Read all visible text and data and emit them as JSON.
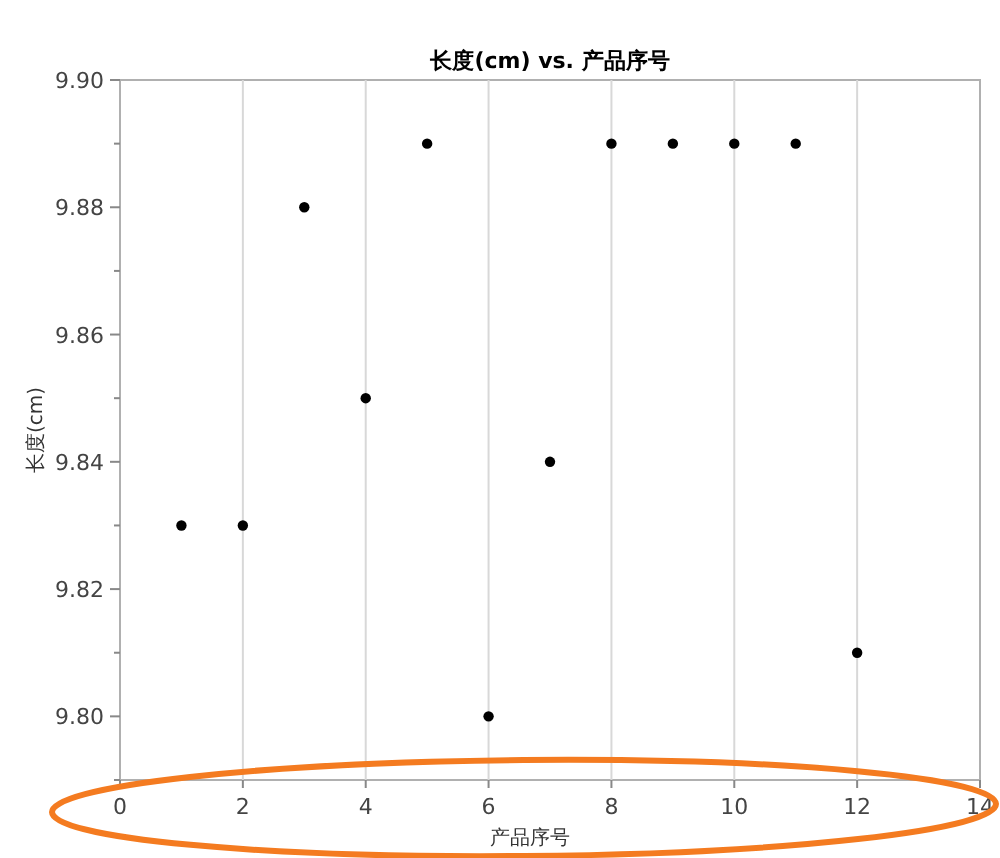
{
  "chart_data": {
    "type": "scatter",
    "title": "长度(cm) vs. 产品序号",
    "xlabel": "产品序号",
    "ylabel": "长度(cm)",
    "x": [
      1,
      2,
      3,
      4,
      5,
      6,
      7,
      8,
      9,
      10,
      11,
      12
    ],
    "values": [
      9.83,
      9.83,
      9.88,
      9.85,
      9.89,
      9.8,
      9.84,
      9.89,
      9.89,
      9.89,
      9.89,
      9.81
    ],
    "color": "#000000",
    "marker": "circle",
    "grid": "x",
    "xlim": [
      0,
      14
    ],
    "xticks": [
      0,
      2,
      4,
      6,
      8,
      10,
      12,
      14
    ],
    "ylim": [
      9.79,
      9.9
    ],
    "yticks": [
      {
        "value": 9.79,
        "label": null
      },
      {
        "value": 9.8,
        "label": "9.80"
      },
      {
        "value": 9.81,
        "label": null
      },
      {
        "value": 9.82,
        "label": "9.82"
      },
      {
        "value": 9.83,
        "label": null
      },
      {
        "value": 9.84,
        "label": "9.84"
      },
      {
        "value": 9.85,
        "label": null
      },
      {
        "value": 9.86,
        "label": "9.86"
      },
      {
        "value": 9.87,
        "label": null
      },
      {
        "value": 9.88,
        "label": "9.88"
      },
      {
        "value": 9.89,
        "label": null
      },
      {
        "value": 9.9,
        "label": "9.90"
      }
    ]
  }
}
